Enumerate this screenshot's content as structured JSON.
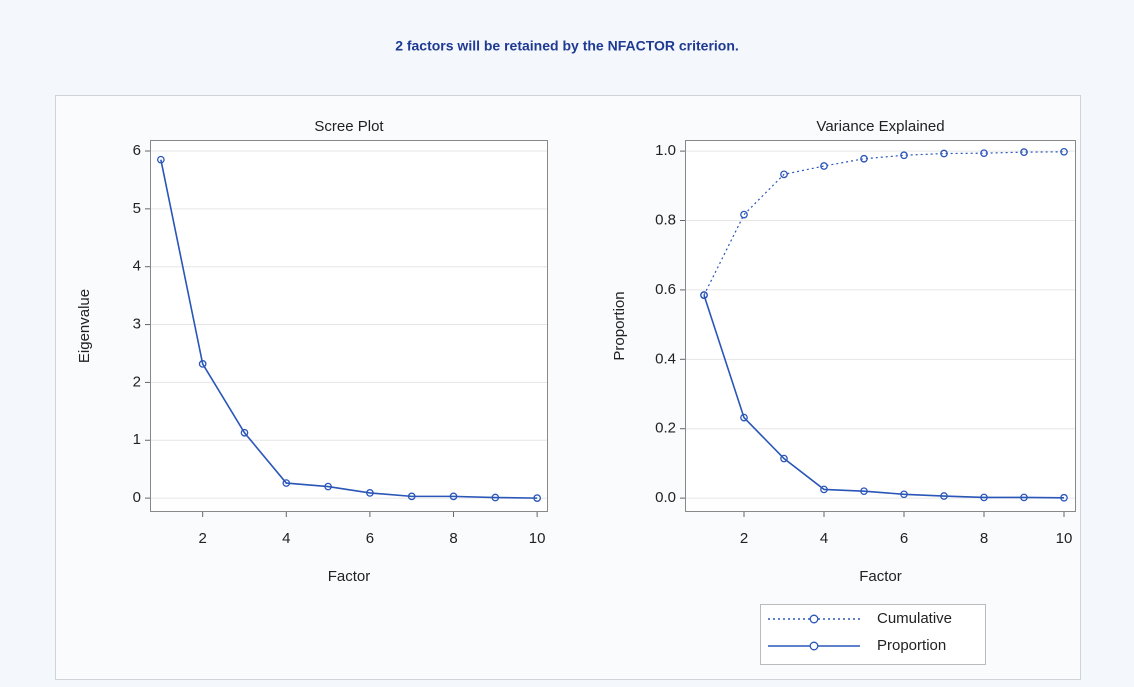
{
  "title": "2 factors will be retained by the NFACTOR criterion.",
  "chart_data": [
    {
      "type": "line",
      "title": "Scree Plot",
      "x_label": "Factor",
      "y_label": "Eigenvalue",
      "x": [
        1,
        2,
        3,
        4,
        5,
        6,
        7,
        8,
        9,
        10
      ],
      "values": [
        5.85,
        2.32,
        1.13,
        0.26,
        0.2,
        0.09,
        0.03,
        0.03,
        0.01,
        0.0
      ],
      "color": "#2a56b8",
      "linestyle": "solid",
      "xlim": [
        0.74,
        10.26
      ],
      "xticks": [
        2,
        4,
        6,
        8,
        10
      ],
      "ylim": [
        -0.24,
        6.19
      ],
      "yticks": [
        0,
        1,
        2,
        3,
        4,
        5,
        6
      ],
      "grid": true
    },
    {
      "type": "line",
      "title": "Variance Explained",
      "x_label": "Factor",
      "y_label": "Proportion",
      "x": [
        1,
        2,
        3,
        4,
        5,
        6,
        7,
        8,
        9,
        10
      ],
      "series": [
        {
          "name": "Cumulative",
          "color": "#2a56b8",
          "linestyle": "dotted",
          "values": [
            0.585,
            0.817,
            0.933,
            0.957,
            0.978,
            0.988,
            0.993,
            0.994,
            0.997,
            0.998
          ]
        },
        {
          "name": "Proportion",
          "color": "#2a56b8",
          "linestyle": "solid",
          "values": [
            0.585,
            0.232,
            0.114,
            0.025,
            0.02,
            0.011,
            0.006,
            0.002,
            0.002,
            0.001
          ]
        }
      ],
      "xlim": [
        0.525,
        10.3
      ],
      "xticks": [
        2,
        4,
        6,
        8,
        10
      ],
      "ylim": [
        -0.04,
        1.032
      ],
      "yticks": [
        {
          "value": 0,
          "label": "0.0"
        },
        0.2,
        0.4,
        0.6,
        0.8,
        {
          "value": 1,
          "label": "1.0"
        }
      ],
      "grid": true,
      "legend": "bottom"
    }
  ]
}
